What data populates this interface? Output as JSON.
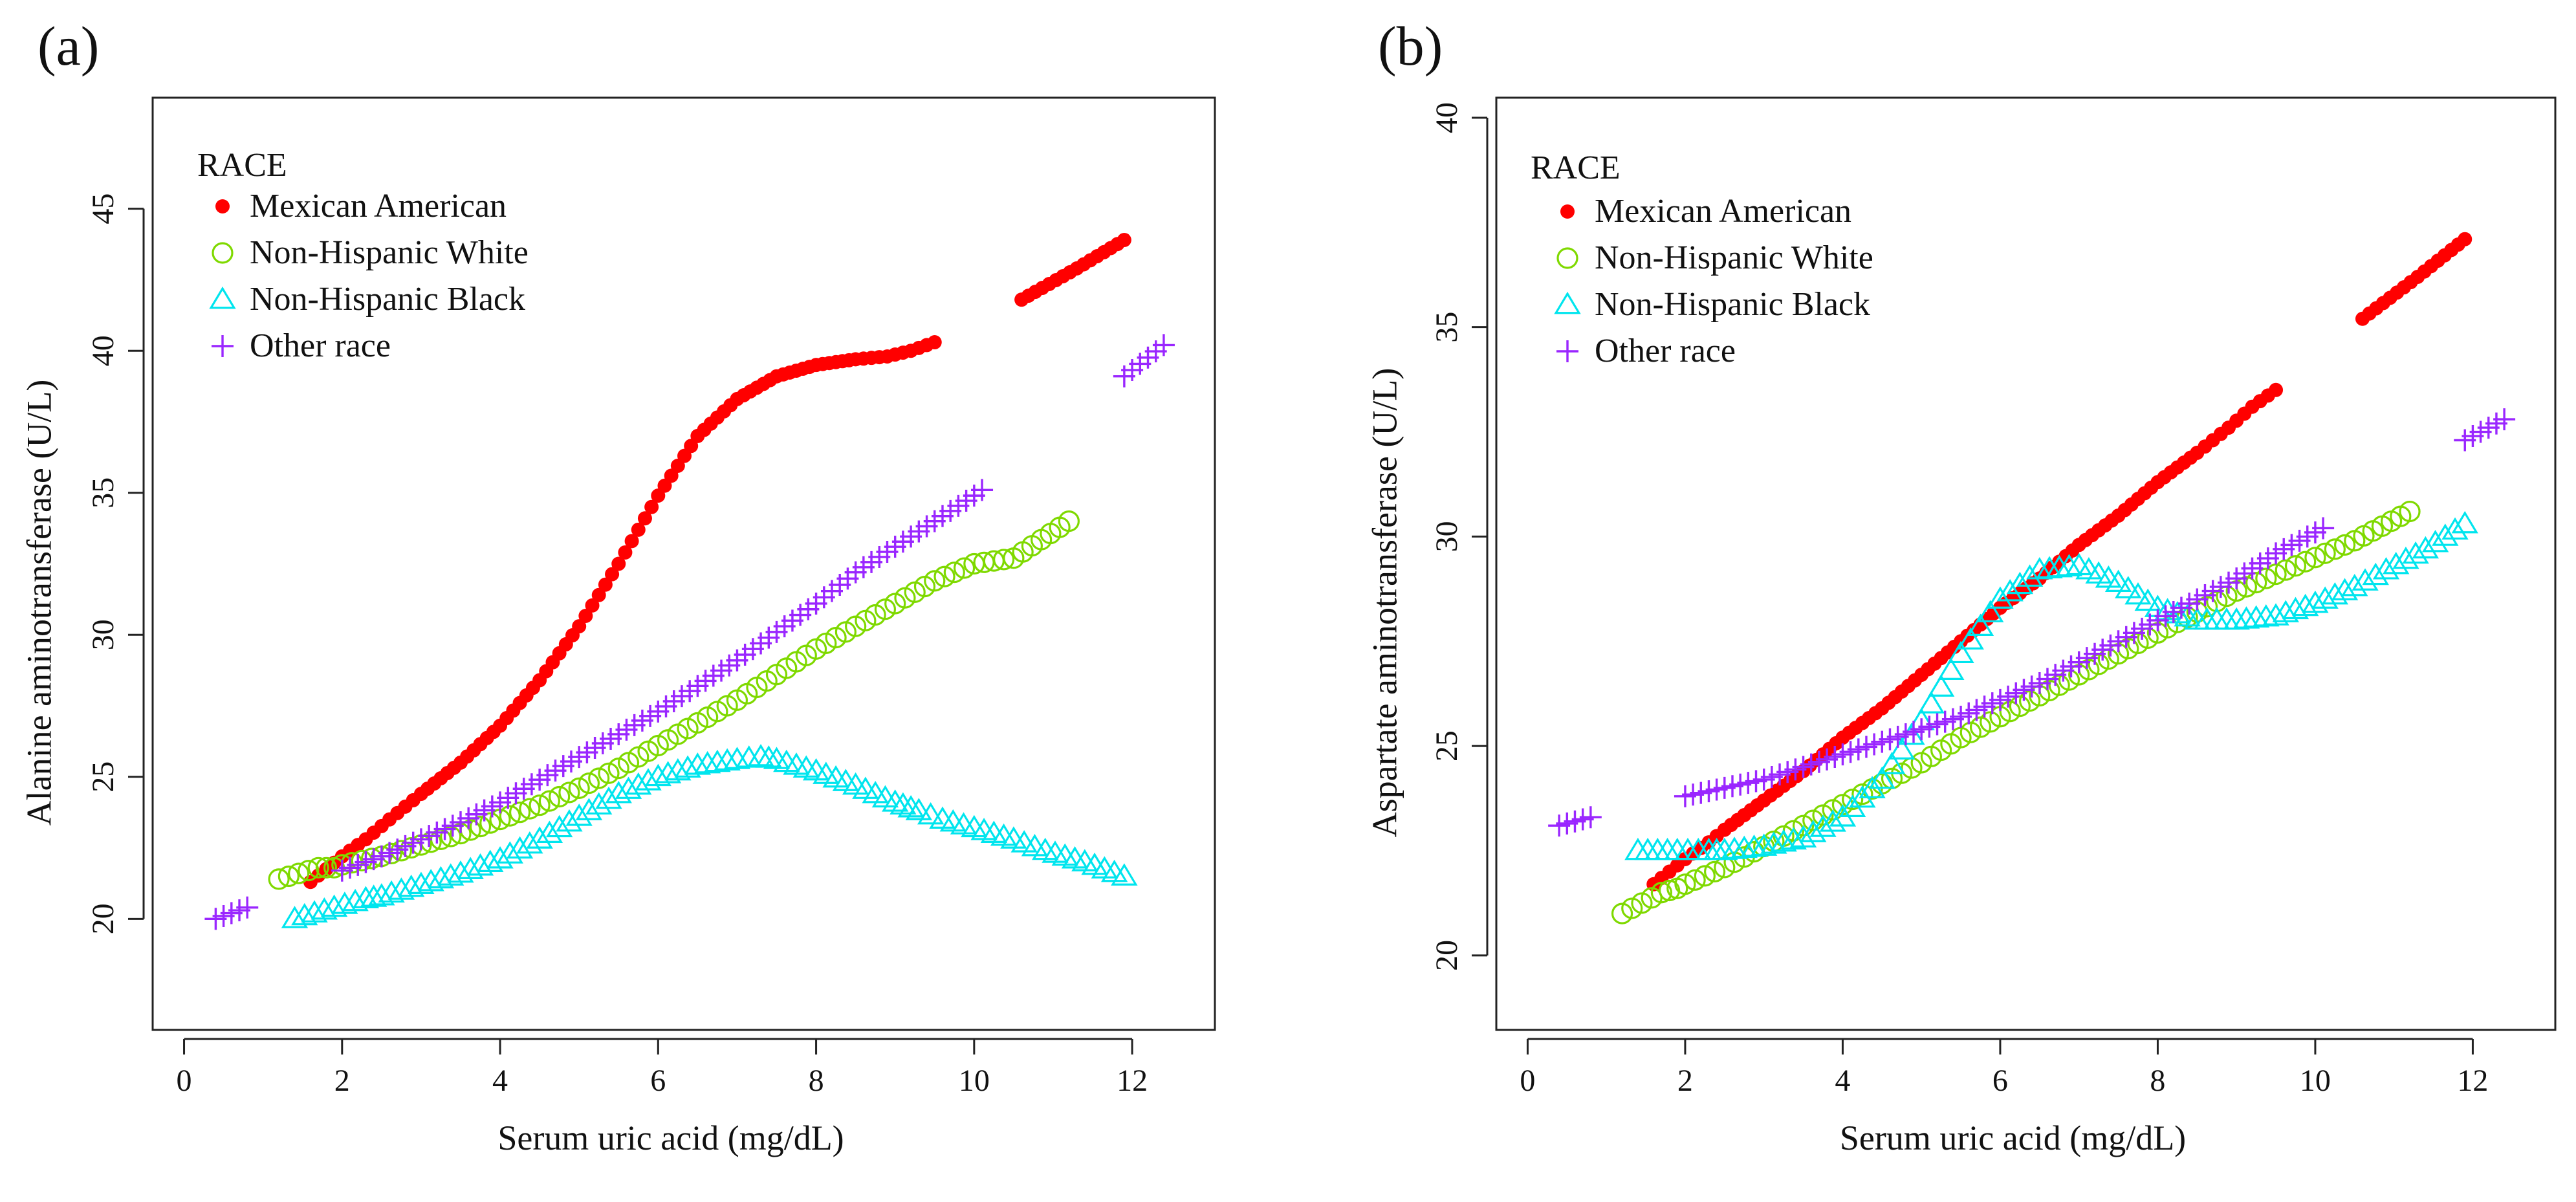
{
  "chart_data": [
    {
      "type": "scatter",
      "panel_label": "(a)",
      "xlabel": "Serum uric acid (mg/dL)",
      "ylabel": "Alanine aminotransferase (U/L)",
      "xlim": [
        -0.25,
        12.9
      ],
      "ylim": [
        16.5,
        48.5
      ],
      "xticks": [
        0,
        2,
        4,
        6,
        8,
        10,
        12
      ],
      "yticks": [
        20,
        25,
        30,
        35,
        40,
        45
      ],
      "legend": {
        "title": "RACE",
        "position": "top-left"
      },
      "series": [
        {
          "name": "Mexican American",
          "marker": "dot",
          "color": "#ff0000",
          "x": [
            1.6,
            2.0,
            2.3,
            2.6,
            3.0,
            3.5,
            4.0,
            4.5,
            5.0,
            5.5,
            6.0,
            6.5,
            7.0,
            7.5,
            8.0,
            8.5,
            8.9,
            9.2,
            9.5,
            10.6,
            11.3,
            11.9
          ],
          "y": [
            21.3,
            22.2,
            22.8,
            23.5,
            24.4,
            25.5,
            26.8,
            28.4,
            30.3,
            32.5,
            34.9,
            37.0,
            38.3,
            39.1,
            39.5,
            39.7,
            39.8,
            40.0,
            40.3,
            41.8,
            42.9,
            43.9
          ]
        },
        {
          "name": "Non-Hispanic White",
          "marker": "circle",
          "color": "#7fd900",
          "x": [
            1.2,
            1.7,
            1.9,
            2.0,
            2.5,
            3.0,
            3.5,
            4.0,
            4.5,
            5.0,
            5.5,
            6.0,
            6.5,
            7.0,
            7.5,
            8.0,
            8.5,
            9.0,
            9.5,
            10.0,
            10.5,
            11.2
          ],
          "y": [
            21.4,
            21.8,
            21.8,
            21.9,
            22.2,
            22.6,
            23.0,
            23.5,
            24.0,
            24.6,
            25.3,
            26.1,
            26.9,
            27.7,
            28.6,
            29.5,
            30.3,
            31.1,
            31.9,
            32.5,
            32.7,
            34.0
          ]
        },
        {
          "name": "Non-Hispanic Black",
          "marker": "triangle",
          "color": "#00e5ee",
          "x": [
            1.4,
            1.9,
            2.3,
            2.5,
            3.0,
            3.5,
            4.0,
            4.5,
            5.0,
            5.5,
            6.0,
            6.5,
            7.0,
            7.3,
            7.5,
            8.0,
            8.5,
            9.0,
            9.3,
            9.6,
            10.0,
            10.5,
            10.9,
            11.4,
            11.9
          ],
          "y": [
            20.0,
            20.4,
            20.7,
            20.8,
            21.2,
            21.6,
            22.1,
            22.8,
            23.6,
            24.4,
            25.0,
            25.4,
            25.6,
            25.7,
            25.6,
            25.2,
            24.7,
            24.1,
            23.8,
            23.5,
            23.2,
            22.8,
            22.4,
            22.0,
            21.5
          ]
        },
        {
          "name": "Other race",
          "marker": "plus",
          "color": "#9a26ff",
          "x": [
            0.4,
            0.8,
            2.0,
            2.5,
            3.0,
            3.5,
            4.0,
            4.5,
            5.0,
            5.5,
            6.0,
            6.5,
            7.0,
            7.5,
            8.0,
            8.5,
            9.0,
            9.5,
            10.0,
            10.1,
            11.9,
            12.4
          ],
          "y": [
            20.0,
            20.4,
            21.7,
            22.2,
            22.8,
            23.4,
            24.1,
            24.9,
            25.7,
            26.5,
            27.3,
            28.2,
            29.1,
            30.1,
            31.1,
            32.2,
            33.1,
            34.0,
            34.9,
            35.1,
            39.1,
            40.2
          ]
        }
      ]
    },
    {
      "type": "scatter",
      "panel_label": "(b)",
      "xlabel": "Serum uric acid (mg/dL)",
      "ylabel": "Aspartate aminotransferase (U/L)",
      "xlim": [
        -0.25,
        12.9
      ],
      "ylim": [
        18.5,
        40.2
      ],
      "xticks": [
        0,
        2,
        4,
        6,
        8,
        10,
        12
      ],
      "yticks": [
        20,
        25,
        30,
        35,
        40
      ],
      "legend": {
        "title": "RACE",
        "position": "top-left"
      },
      "series": [
        {
          "name": "Mexican American",
          "marker": "dot",
          "color": "#ff0000",
          "x": [
            1.6,
            2.0,
            2.3,
            2.5,
            3.0,
            3.5,
            4.0,
            4.5,
            5.0,
            5.5,
            6.0,
            6.5,
            7.0,
            7.5,
            8.0,
            8.5,
            8.9,
            9.2,
            9.5,
            10.6,
            11.3,
            11.9
          ],
          "y": [
            21.7,
            22.3,
            22.7,
            23.0,
            23.7,
            24.4,
            25.2,
            25.9,
            26.7,
            27.5,
            28.3,
            29.0,
            29.8,
            30.5,
            31.3,
            32.0,
            32.6,
            33.1,
            33.5,
            35.2,
            36.2,
            37.1
          ]
        },
        {
          "name": "Non-Hispanic White",
          "marker": "circle",
          "color": "#7fd900",
          "x": [
            1.2,
            1.7,
            1.9,
            2.0,
            2.5,
            3.0,
            3.5,
            4.0,
            4.5,
            5.0,
            5.5,
            6.0,
            6.5,
            7.0,
            7.5,
            8.0,
            8.5,
            9.0,
            9.5,
            10.0,
            10.5,
            11.2
          ],
          "y": [
            21.0,
            21.5,
            21.6,
            21.7,
            22.1,
            22.6,
            23.1,
            23.6,
            24.1,
            24.6,
            25.2,
            25.7,
            26.2,
            26.7,
            27.2,
            27.7,
            28.2,
            28.7,
            29.1,
            29.5,
            29.9,
            30.6
          ]
        },
        {
          "name": "Non-Hispanic Black",
          "marker": "triangle",
          "color": "#00e5ee",
          "x": [
            1.4,
            1.9,
            2.3,
            2.5,
            3.0,
            3.5,
            4.0,
            4.5,
            5.0,
            5.5,
            6.0,
            6.5,
            7.0,
            7.5,
            8.0,
            8.5,
            9.0,
            9.5,
            10.0,
            10.5,
            10.9,
            11.4,
            11.9
          ],
          "y": [
            22.5,
            22.5,
            22.5,
            22.5,
            22.6,
            22.8,
            23.3,
            24.2,
            25.6,
            27.2,
            28.5,
            29.2,
            29.3,
            28.9,
            28.3,
            28.0,
            28.0,
            28.1,
            28.4,
            28.8,
            29.2,
            29.7,
            30.3
          ]
        },
        {
          "name": "Other race",
          "marker": "plus",
          "color": "#9a26ff",
          "x": [
            0.4,
            0.8,
            2.0,
            2.5,
            3.0,
            3.5,
            4.0,
            4.5,
            5.0,
            5.5,
            6.0,
            6.5,
            7.0,
            7.5,
            8.0,
            8.5,
            9.0,
            9.5,
            10.0,
            10.1,
            11.9,
            12.4
          ],
          "y": [
            23.1,
            23.3,
            23.8,
            24.0,
            24.2,
            24.5,
            24.8,
            25.1,
            25.4,
            25.7,
            26.1,
            26.5,
            27.0,
            27.5,
            28.0,
            28.5,
            29.0,
            29.6,
            30.1,
            30.2,
            32.3,
            32.8
          ]
        }
      ]
    }
  ]
}
